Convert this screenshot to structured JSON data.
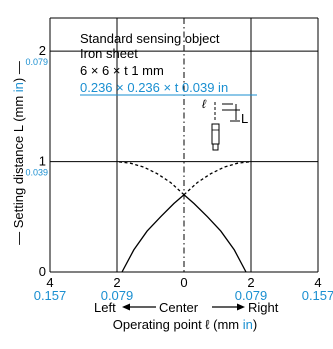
{
  "chart_data": {
    "type": "line",
    "x_ticks": [
      {
        "value": -4,
        "mm": "4",
        "inch": "0.157"
      },
      {
        "value": -2,
        "mm": "2",
        "inch": "0.079"
      },
      {
        "value": 0,
        "mm": "0",
        "inch": ""
      },
      {
        "value": 2,
        "mm": "2",
        "inch": "0.079"
      },
      {
        "value": 4,
        "mm": "4",
        "inch": "0.157"
      }
    ],
    "y_ticks": [
      {
        "value": 0,
        "mm": "0",
        "inch": ""
      },
      {
        "value": 1,
        "mm": "1",
        "inch": "0.039"
      },
      {
        "value": 2,
        "mm": "2",
        "inch": "0.079"
      }
    ],
    "xlim": [
      -4,
      4
    ],
    "ylim": [
      0,
      2.3
    ],
    "ylabel": {
      "pre": "— Setting distance L (mm ",
      "unit": "in",
      "post": ") —"
    },
    "xlabel_dir": {
      "left": "Left",
      "center": "Center",
      "right": "Right"
    },
    "xlabel": {
      "pre": "Operating point ℓ (mm ",
      "unit": "in",
      "post": ")"
    },
    "annotation": {
      "line1": "Standard sensing object",
      "line2": "Iron sheet",
      "line3": "6 × 6 × t 1 mm",
      "line4": "0.236 × 0.236 × t 0.039 in"
    },
    "diagram_labels": {
      "ell": "ℓ",
      "L": "L"
    },
    "colors": {
      "inch": "#1a8fd1",
      "line": "#000000"
    },
    "series": [
      {
        "style": "solid",
        "x": [
          -1.85,
          -1.5,
          -1.1,
          -0.7,
          -0.3,
          0
        ],
        "y": [
          0,
          0.2,
          0.37,
          0.5,
          0.62,
          0.7
        ]
      },
      {
        "style": "dashed",
        "x": [
          0,
          -0.4,
          -0.8,
          -1.2,
          -1.6,
          -2.0
        ],
        "y": [
          0.7,
          0.81,
          0.89,
          0.95,
          0.985,
          1.0
        ]
      },
      {
        "style": "solid",
        "x": [
          1.85,
          1.5,
          1.1,
          0.7,
          0.3,
          0
        ],
        "y": [
          0,
          0.2,
          0.37,
          0.5,
          0.62,
          0.7
        ]
      },
      {
        "style": "dashed",
        "x": [
          0,
          0.4,
          0.8,
          1.2,
          1.6,
          2.0
        ],
        "y": [
          0.7,
          0.81,
          0.89,
          0.95,
          0.985,
          1.0
        ]
      }
    ]
  }
}
